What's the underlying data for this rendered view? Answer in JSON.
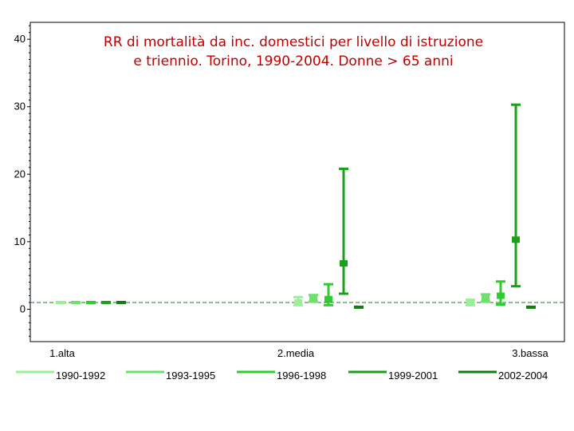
{
  "chart_data": {
    "type": "errorbar",
    "title_line1": "RR di mortalità da inc. domestici per livello di istruzione",
    "title_line2": "e triennio. Torino, 1990-2004. Donne > 65 anni",
    "categories": [
      "1.alta",
      "2.media",
      "3.bassa"
    ],
    "yticks": [
      0,
      10,
      20,
      30,
      40
    ],
    "ylim": [
      -4.8,
      42.5
    ],
    "reference_line": 1,
    "grid": false,
    "legend_position": "bottom",
    "series": [
      {
        "name": "1990-1992",
        "color": "#98f098",
        "points": [
          {
            "est": 1.0,
            "low": 1.0,
            "high": 1.0
          },
          {
            "est": 1.0,
            "low": 0.6,
            "high": 1.8
          },
          {
            "est": 1.0,
            "low": 0.6,
            "high": 1.4
          }
        ]
      },
      {
        "name": "1993-1995",
        "color": "#6ee06e",
        "points": [
          {
            "est": 1.0,
            "low": 1.0,
            "high": 1.0
          },
          {
            "est": 1.6,
            "low": 1.1,
            "high": 2.1
          },
          {
            "est": 1.6,
            "low": 1.1,
            "high": 2.2
          }
        ]
      },
      {
        "name": "1996-1998",
        "color": "#2ecc2e",
        "points": [
          {
            "est": 1.0,
            "low": 1.0,
            "high": 1.0
          },
          {
            "est": 1.5,
            "low": 0.6,
            "high": 3.7
          },
          {
            "est": 2.0,
            "low": 0.7,
            "high": 4.1
          }
        ]
      },
      {
        "name": "1999-2001",
        "color": "#1aa01a",
        "points": [
          {
            "est": 1.0,
            "low": 1.0,
            "high": 1.0
          },
          {
            "est": 6.8,
            "low": 2.3,
            "high": 20.8
          },
          {
            "est": 10.3,
            "low": 3.4,
            "high": 30.3
          }
        ]
      },
      {
        "name": "2002-2004",
        "color": "#117d11",
        "points": [
          {
            "est": 1.0,
            "low": 1.0,
            "high": 1.0
          },
          {
            "est": 0.3,
            "low": 0.3,
            "high": 0.3
          },
          {
            "est": 0.3,
            "low": 0.3,
            "high": 0.3
          }
        ]
      }
    ]
  }
}
